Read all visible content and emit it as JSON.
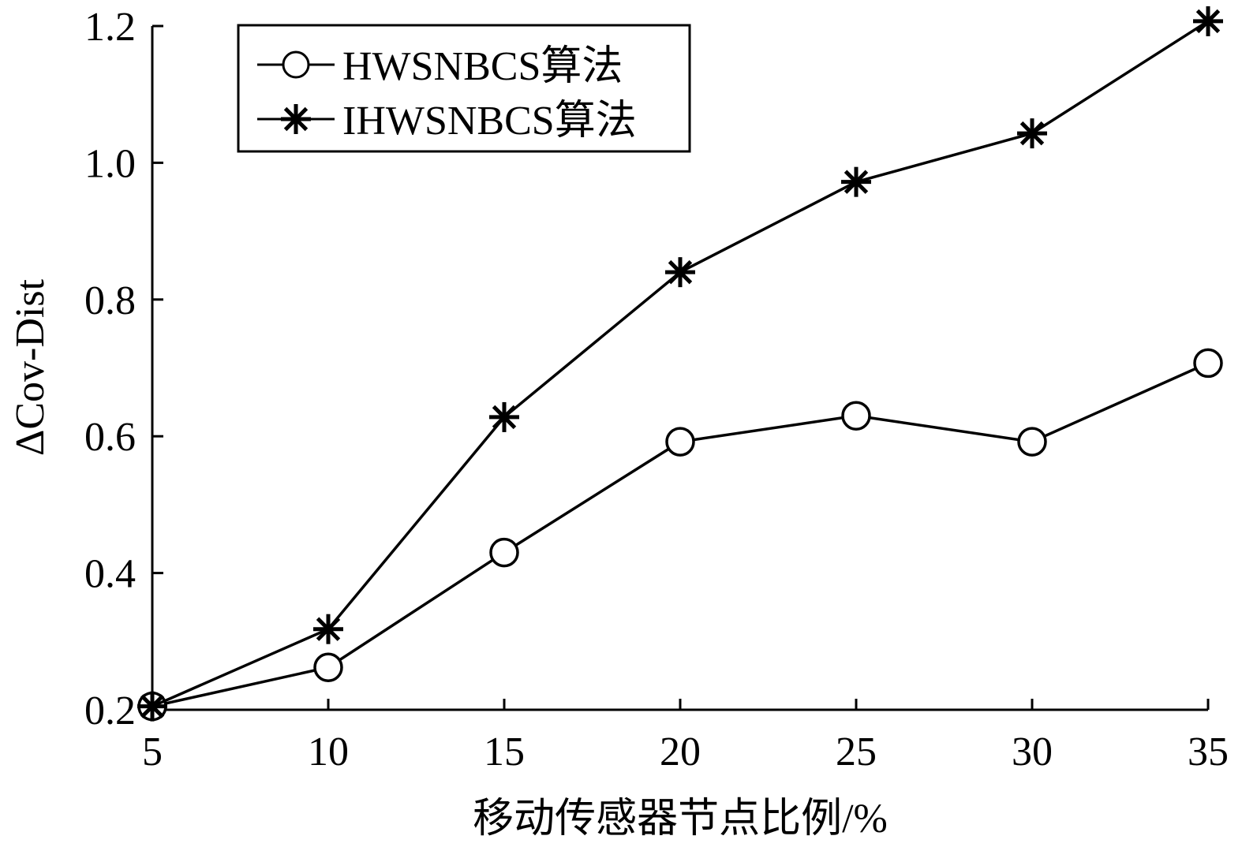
{
  "chart_data": {
    "type": "line",
    "x": [
      5,
      10,
      15,
      20,
      25,
      30,
      35
    ],
    "series": [
      {
        "name": "HWSNBCS算法",
        "marker": "circle",
        "values": [
          0.205,
          0.262,
          0.43,
          0.592,
          0.63,
          0.592,
          0.707
        ]
      },
      {
        "name": "IHWSNBCS算法",
        "marker": "asterisk",
        "values": [
          0.205,
          0.318,
          0.628,
          0.84,
          0.972,
          1.043,
          1.207
        ]
      }
    ],
    "xlabel": "移动传感器节点比例/%",
    "ylabel": "ΔCov-Dist",
    "xlim": [
      5,
      35
    ],
    "ylim": [
      0.2,
      1.2
    ],
    "xticks": [
      "5",
      "10",
      "15",
      "20",
      "25",
      "30",
      "35"
    ],
    "yticks": [
      "0.2",
      "0.4",
      "0.6",
      "0.8",
      "1.0",
      "1.2"
    ],
    "grid": false,
    "legend_position": "top-left",
    "line_color": "#000000"
  }
}
